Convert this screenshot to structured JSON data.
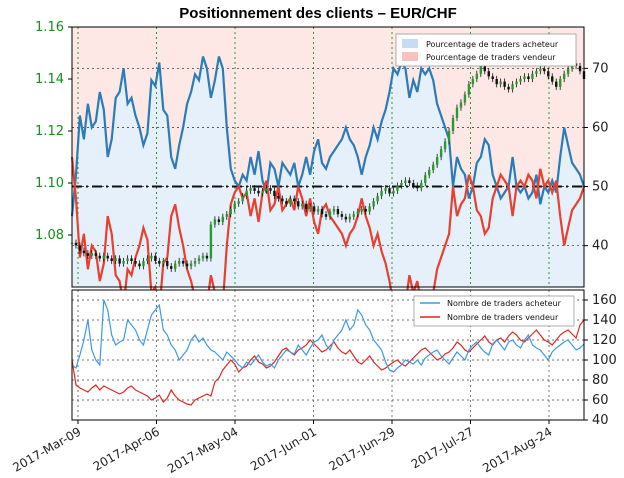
{
  "chart_data": [
    {
      "type": "line",
      "title": "Positionnement des clients – EUR/CHF",
      "overlay": "candlestick",
      "price_axis": {
        "side": "left",
        "ylim": [
          1.06,
          1.16
        ],
        "ticks": [
          "1.08",
          "1.10",
          "1.12",
          "1.14",
          "1.16"
        ],
        "color": "#1a8a1a"
      },
      "percent_axis": {
        "side": "right",
        "ylim": [
          33,
          77
        ],
        "ticks": [
          "40",
          "50",
          "60",
          "70"
        ]
      },
      "reference_line": 50,
      "legend": {
        "placement": "top-right",
        "entries": [
          "Pourcentage de traders acheteur",
          "Pourcentage de traders vendeur"
        ]
      },
      "grid": true,
      "series": [
        {
          "name": "Pourcentage de traders acheteur",
          "color": "#2b7bb9",
          "values": [
            45,
            52,
            62,
            58,
            64,
            60,
            61,
            66,
            63,
            55,
            58,
            65,
            66,
            70,
            64,
            65,
            62,
            60,
            57,
            59,
            68,
            67,
            71,
            63,
            62,
            55,
            53,
            57,
            60,
            64,
            66,
            69,
            68,
            72,
            70,
            65,
            68,
            72,
            70,
            60,
            53,
            51,
            50,
            52,
            51,
            55,
            52,
            56,
            51,
            49,
            54,
            53,
            50,
            54,
            53,
            52,
            54,
            50,
            52,
            55,
            52,
            56,
            58,
            54,
            53,
            55,
            56,
            57,
            58,
            60,
            58,
            57,
            55,
            52,
            55,
            57,
            60,
            58,
            61,
            63,
            66,
            70,
            69,
            71,
            70,
            65,
            68,
            66,
            70,
            69,
            70,
            68,
            64,
            62,
            60,
            58,
            50,
            55,
            53,
            52,
            48,
            50,
            54,
            55,
            58,
            57,
            52,
            50,
            48,
            49,
            50,
            55,
            50,
            49,
            50,
            48,
            49,
            52,
            47,
            50,
            49,
            51,
            49,
            55,
            60,
            57,
            54,
            53,
            52,
            50
          ]
        },
        {
          "name": "Pourcentage de traders vendeur",
          "color": "#e8402f",
          "values": [
            55,
            48,
            38,
            42,
            36,
            40,
            39,
            34,
            37,
            45,
            42,
            35,
            34,
            30,
            36,
            35,
            38,
            40,
            43,
            41,
            32,
            33,
            29,
            37,
            38,
            45,
            47,
            43,
            40,
            36,
            34,
            31,
            32,
            28,
            30,
            35,
            32,
            28,
            30,
            40,
            47,
            49,
            50,
            48,
            49,
            45,
            48,
            44,
            49,
            51,
            46,
            47,
            50,
            46,
            47,
            48,
            46,
            50,
            48,
            45,
            48,
            44,
            42,
            46,
            47,
            45,
            44,
            43,
            42,
            40,
            42,
            43,
            45,
            48,
            45,
            43,
            40,
            42,
            39,
            37,
            34,
            30,
            31,
            29,
            30,
            35,
            32,
            34,
            30,
            31,
            30,
            32,
            36,
            38,
            40,
            42,
            50,
            45,
            47,
            48,
            52,
            50,
            46,
            45,
            42,
            43,
            48,
            50,
            52,
            51,
            50,
            45,
            50,
            51,
            50,
            52,
            51,
            48,
            53,
            50,
            51,
            49,
            51,
            45,
            40,
            43,
            46,
            47,
            48,
            50
          ]
        },
        {
          "name": "EUR/CHF",
          "color": "#111111",
          "type": "candlestick",
          "values": [
            1.077,
            1.076,
            1.074,
            1.073,
            1.072,
            1.073,
            1.072,
            1.071,
            1.072,
            1.071,
            1.07,
            1.071,
            1.069,
            1.07,
            1.071,
            1.07,
            1.069,
            1.068,
            1.07,
            1.071,
            1.072,
            1.07,
            1.069,
            1.07,
            1.068,
            1.067,
            1.069,
            1.07,
            1.069,
            1.068,
            1.069,
            1.07,
            1.071,
            1.072,
            1.071,
            1.084,
            1.086,
            1.085,
            1.087,
            1.088,
            1.09,
            1.092,
            1.093,
            1.095,
            1.097,
            1.098,
            1.097,
            1.096,
            1.097,
            1.098,
            1.097,
            1.095,
            1.094,
            1.093,
            1.092,
            1.094,
            1.093,
            1.091,
            1.092,
            1.09,
            1.091,
            1.089,
            1.09,
            1.088,
            1.087,
            1.089,
            1.09,
            1.088,
            1.087,
            1.086,
            1.087,
            1.088,
            1.089,
            1.09,
            1.089,
            1.091,
            1.093,
            1.095,
            1.097,
            1.098,
            1.096,
            1.097,
            1.099,
            1.1,
            1.101,
            1.1,
            1.099,
            1.098,
            1.1,
            1.103,
            1.105,
            1.107,
            1.11,
            1.113,
            1.116,
            1.12,
            1.125,
            1.129,
            1.131,
            1.134,
            1.138,
            1.14,
            1.142,
            1.145,
            1.143,
            1.141,
            1.14,
            1.138,
            1.139,
            1.137,
            1.136,
            1.138,
            1.139,
            1.14,
            1.141,
            1.14,
            1.142,
            1.143,
            1.144,
            1.143,
            1.141,
            1.139,
            1.137,
            1.14,
            1.142,
            1.144,
            1.146,
            1.145,
            1.143,
            1.14
          ]
        }
      ]
    },
    {
      "type": "line",
      "ylim": [
        40,
        170
      ],
      "y_ticks": [
        "40",
        "60",
        "80",
        "100",
        "120",
        "140",
        "160"
      ],
      "x_ticks": [
        "2017-Mar-09",
        "2017-Apr-06",
        "2017-May-04",
        "2017-Jun-01",
        "2017-Jun-29",
        "2017-Jul-27",
        "2017-Aug-24"
      ],
      "legend": {
        "placement": "top-right",
        "entries": [
          "Nombre de traders acheteur",
          "Nombre de traders vendeur"
        ]
      },
      "grid": true,
      "series": [
        {
          "name": "Nombre de traders acheteur",
          "color": "#3a9ae8",
          "values": [
            95,
            92,
            105,
            120,
            140,
            110,
            100,
            95,
            160,
            150,
            125,
            115,
            118,
            120,
            140,
            135,
            130,
            120,
            115,
            130,
            145,
            150,
            155,
            130,
            125,
            115,
            110,
            100,
            105,
            110,
            120,
            125,
            118,
            122,
            115,
            110,
            108,
            104,
            100,
            108,
            104,
            100,
            95,
            92,
            98,
            95,
            100,
            105,
            98,
            94,
            96,
            92,
            100,
            105,
            110,
            108,
            106,
            115,
            110,
            105,
            112,
            118,
            120,
            125,
            115,
            110,
            120,
            125,
            130,
            140,
            130,
            135,
            150,
            145,
            135,
            130,
            120,
            115,
            110,
            98,
            90,
            88,
            92,
            95,
            100,
            98,
            96,
            100,
            95,
            102,
            105,
            108,
            110,
            104,
            100,
            96,
            102,
            108,
            104,
            100,
            110,
            115,
            118,
            112,
            108,
            105,
            116,
            120,
            115,
            110,
            118,
            120,
            115,
            112,
            120,
            125,
            115,
            112,
            110,
            105,
            100,
            108,
            112,
            115,
            118,
            120,
            115,
            110,
            112,
            116
          ]
        },
        {
          "name": "Nombre de traders vendeur",
          "color": "#e2261e",
          "values": [
            100,
            75,
            72,
            70,
            68,
            72,
            75,
            70,
            74,
            72,
            70,
            68,
            66,
            68,
            72,
            74,
            70,
            68,
            66,
            64,
            60,
            62,
            65,
            58,
            62,
            70,
            64,
            60,
            58,
            56,
            55,
            60,
            62,
            64,
            66,
            64,
            78,
            82,
            90,
            95,
            100,
            96,
            88,
            92,
            94,
            100,
            104,
            98,
            96,
            92,
            94,
            98,
            104,
            110,
            112,
            108,
            105,
            110,
            112,
            115,
            120,
            116,
            112,
            108,
            110,
            114,
            118,
            112,
            108,
            106,
            110,
            104,
            98,
            96,
            100,
            104,
            98,
            94,
            90,
            92,
            95,
            98,
            100,
            96,
            94,
            98,
            102,
            106,
            110,
            112,
            108,
            104,
            100,
            102,
            106,
            108,
            112,
            118,
            115,
            110,
            108,
            112,
            116,
            120,
            124,
            118,
            115,
            120,
            122,
            118,
            124,
            128,
            125,
            120,
            118,
            122,
            126,
            130,
            125,
            120,
            118,
            115,
            120,
            125,
            128,
            130,
            126,
            122,
            135,
            140
          ]
        }
      ]
    }
  ]
}
